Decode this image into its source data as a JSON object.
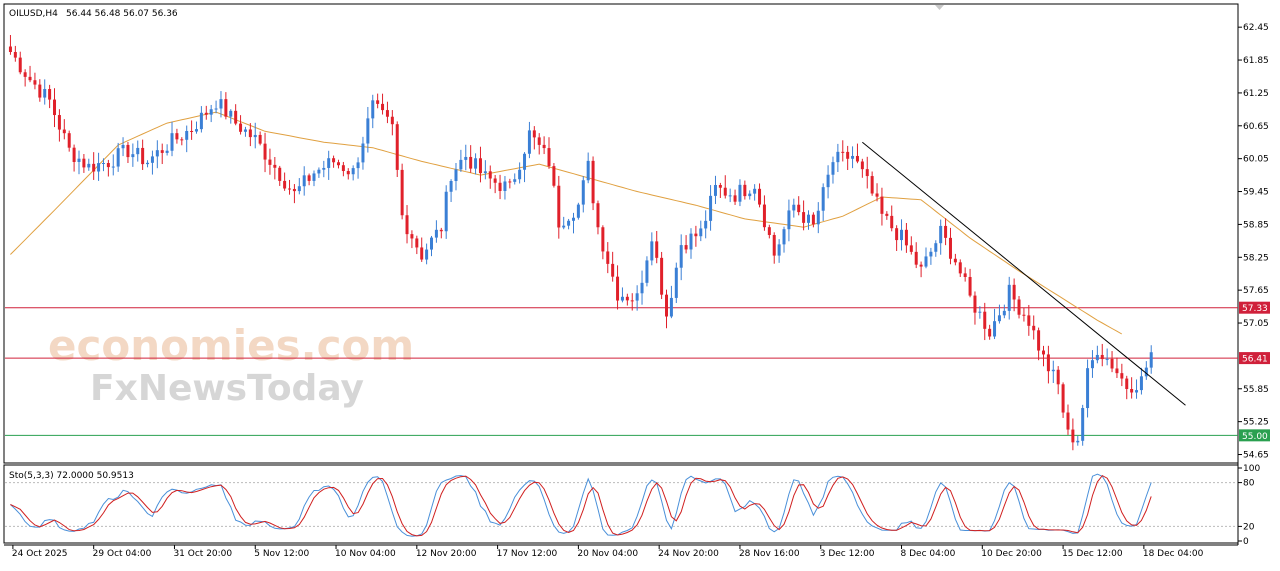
{
  "header": {
    "symbol": "OILUSD,H4",
    "ohlc": "56.44 56.48 56.07 56.36"
  },
  "watermark": {
    "line1": "economies.com",
    "line2": "FxNewsToday"
  },
  "oscillator": {
    "label": "Sto(5,3,3) 72.0000 50.9513",
    "scale": [
      "100",
      "80",
      "20",
      "0"
    ],
    "levels": [
      80,
      20
    ]
  },
  "colors": {
    "bull": "#3a7fd5",
    "bear": "#e0202a",
    "ma": "#e0a040",
    "resistance": "#d0203a",
    "support": "#2aa050",
    "trendline": "#000000",
    "stoch_main": "#4a90d9",
    "stoch_signal": "#d02020"
  },
  "chart_data": {
    "type": "candlestick",
    "symbol": "OILUSD",
    "timeframe": "H4",
    "y_ticks": [
      "62.45",
      "61.85",
      "61.25",
      "60.65",
      "60.05",
      "59.45",
      "58.85",
      "58.25",
      "57.65",
      "57.05",
      "55.85",
      "55.25",
      "54.65"
    ],
    "x_ticks": [
      "24 Oct 2025",
      "29 Oct 04:00",
      "31 Oct 20:00",
      "5 Nov 12:00",
      "10 Nov 04:00",
      "12 Nov 20:00",
      "17 Nov 12:00",
      "20 Nov 04:00",
      "24 Nov 20:00",
      "28 Nov 16:00",
      "3 Dec 12:00",
      "8 Dec 04:00",
      "10 Dec 20:00",
      "15 Dec 12:00",
      "18 Dec 04:00"
    ],
    "ylim": [
      54.55,
      62.8
    ],
    "horizontal_levels": [
      {
        "value": 57.33,
        "label": "57.33",
        "role": "resistance"
      },
      {
        "value": 56.41,
        "label": "56.41",
        "role": "resistance"
      },
      {
        "value": 55.0,
        "label": "55.00",
        "role": "support"
      }
    ],
    "close_anchors": [
      [
        0,
        62.0
      ],
      [
        4,
        61.5
      ],
      [
        8,
        61.1
      ],
      [
        12,
        60.2
      ],
      [
        16,
        59.9
      ],
      [
        20,
        60.0
      ],
      [
        24,
        60.2
      ],
      [
        28,
        60.0
      ],
      [
        32,
        60.3
      ],
      [
        37,
        60.6
      ],
      [
        42,
        61.1
      ],
      [
        46,
        60.7
      ],
      [
        50,
        60.4
      ],
      [
        54,
        59.9
      ],
      [
        58,
        59.4
      ],
      [
        62,
        59.8
      ],
      [
        66,
        60.0
      ],
      [
        70,
        59.8
      ],
      [
        74,
        61.0
      ],
      [
        78,
        60.6
      ],
      [
        80,
        59.0
      ],
      [
        84,
        58.3
      ],
      [
        88,
        58.8
      ],
      [
        90,
        59.8
      ],
      [
        93,
        60.1
      ],
      [
        97,
        59.7
      ],
      [
        102,
        59.5
      ],
      [
        106,
        60.5
      ],
      [
        110,
        60.0
      ],
      [
        112,
        58.9
      ],
      [
        116,
        59.2
      ],
      [
        118,
        59.9
      ],
      [
        120,
        58.8
      ],
      [
        124,
        57.6
      ],
      [
        128,
        57.5
      ],
      [
        131,
        58.7
      ],
      [
        134,
        57.2
      ],
      [
        137,
        58.5
      ],
      [
        141,
        58.7
      ],
      [
        144,
        59.5
      ],
      [
        148,
        59.4
      ],
      [
        152,
        59.6
      ],
      [
        156,
        58.3
      ],
      [
        160,
        59.2
      ],
      [
        164,
        58.8
      ],
      [
        168,
        60.0
      ],
      [
        172,
        60.1
      ],
      [
        175,
        59.6
      ],
      [
        178,
        59.0
      ],
      [
        182,
        58.6
      ],
      [
        186,
        58.0
      ],
      [
        190,
        58.7
      ],
      [
        193,
        58.2
      ],
      [
        196,
        57.5
      ],
      [
        200,
        56.9
      ],
      [
        204,
        57.6
      ],
      [
        208,
        57.1
      ],
      [
        211,
        56.4
      ],
      [
        214,
        55.9
      ],
      [
        216,
        55.0
      ],
      [
        218,
        54.95
      ],
      [
        220,
        56.1
      ],
      [
        222,
        56.6
      ],
      [
        225,
        56.3
      ],
      [
        228,
        55.9
      ],
      [
        231,
        56.0
      ],
      [
        233,
        56.5
      ]
    ],
    "ma_anchors": [
      [
        0,
        58.3
      ],
      [
        10,
        59.2
      ],
      [
        22,
        60.3
      ],
      [
        32,
        60.7
      ],
      [
        42,
        60.9
      ],
      [
        52,
        60.55
      ],
      [
        64,
        60.35
      ],
      [
        74,
        60.25
      ],
      [
        84,
        60.0
      ],
      [
        96,
        59.75
      ],
      [
        108,
        59.95
      ],
      [
        118,
        59.7
      ],
      [
        128,
        59.45
      ],
      [
        140,
        59.2
      ],
      [
        150,
        58.95
      ],
      [
        162,
        58.8
      ],
      [
        170,
        59.0
      ],
      [
        178,
        59.35
      ],
      [
        186,
        59.3
      ],
      [
        196,
        58.6
      ],
      [
        206,
        58.0
      ],
      [
        214,
        57.55
      ],
      [
        222,
        57.1
      ],
      [
        227,
        56.85
      ]
    ],
    "trendline": {
      "from": [
        174,
        60.35
      ],
      "to": [
        240,
        55.55
      ]
    },
    "stochastic": {
      "k_period": 5,
      "d_period": 3,
      "slowing": 3,
      "main": 72.0,
      "signal": 50.9513
    }
  }
}
